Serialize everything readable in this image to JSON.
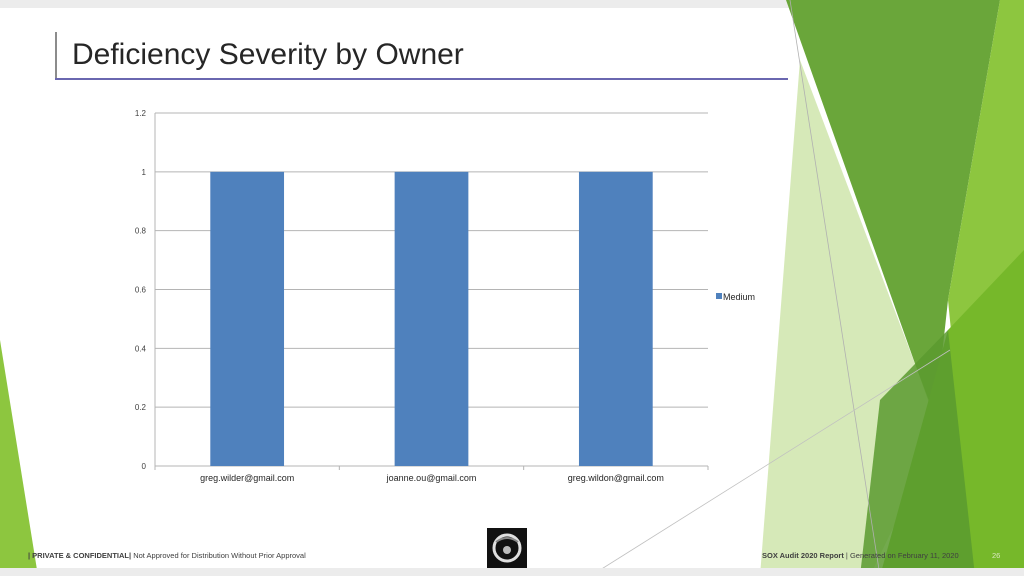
{
  "slide": {
    "title": "Deficiency Severity by Owner",
    "page_number": "26"
  },
  "footer": {
    "confidential_label": "| PRIVATE & CONFIDENTIAL|",
    "distribution_note": "Not Approved for Distribution Without Prior Approval",
    "report_name": "SOX Audit 2020 Report",
    "separator": " | ",
    "generated": "Generated on February 11, 2020"
  },
  "colors": {
    "bar": "#4f81bd",
    "green_dark": "#5a9a2f",
    "green_light": "#8dc63f",
    "title_rule": "#6a67b0"
  },
  "chart_data": {
    "type": "bar",
    "categories": [
      "greg.wilder@gmail.com",
      "joanne.ou@gmail.com",
      "greg.wildon@gmail.com"
    ],
    "series": [
      {
        "name": "Medium",
        "values": [
          1,
          1,
          1
        ]
      }
    ],
    "y_ticks": [
      "0",
      "0.2",
      "0.4",
      "0.6",
      "0.8",
      "1",
      "1.2"
    ],
    "ylim": [
      0,
      1.2
    ],
    "grid": true,
    "legend_position": "right"
  }
}
